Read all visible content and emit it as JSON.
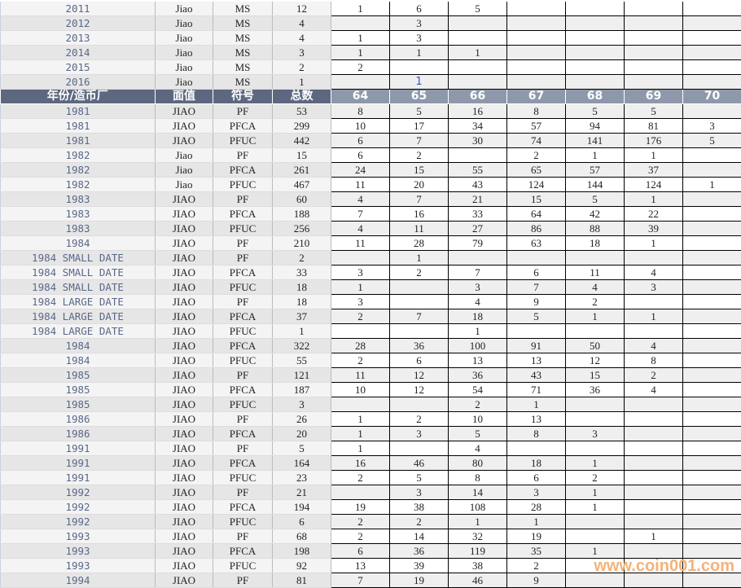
{
  "header": {
    "year": "年份/造币厂",
    "denomination": "面值",
    "symbol": "符号",
    "total": "总数",
    "grades": [
      "64",
      "65",
      "66",
      "67",
      "68",
      "69",
      "70"
    ]
  },
  "rows_top": [
    [
      "2011",
      "Jiao",
      "MS",
      "12",
      "1",
      "6",
      "5",
      "",
      "",
      "",
      ""
    ],
    [
      "2012",
      "Jiao",
      "MS",
      "4",
      "",
      "3",
      "",
      "",
      "",
      "",
      ""
    ],
    [
      "2013",
      "Jiao",
      "MS",
      "4",
      "1",
      "3",
      "",
      "",
      "",
      "",
      ""
    ],
    [
      "2014",
      "Jiao",
      "MS",
      "3",
      "1",
      "1",
      "1",
      "",
      "",
      "",
      ""
    ],
    [
      "2015",
      "Jiao",
      "MS",
      "2",
      "2",
      "",
      "",
      "",
      "",
      "",
      ""
    ],
    [
      "2016",
      "Jiao",
      "MS",
      "1",
      "",
      "1",
      "",
      "",
      "",
      "",
      ""
    ]
  ],
  "rows": [
    [
      "1981",
      "JIAO",
      "PF",
      "53",
      "8",
      "5",
      "16",
      "8",
      "5",
      "5",
      ""
    ],
    [
      "1981",
      "JIAO",
      "PFCA",
      "299",
      "10",
      "17",
      "34",
      "57",
      "94",
      "81",
      "3"
    ],
    [
      "1981",
      "JIAO",
      "PFUC",
      "442",
      "6",
      "7",
      "30",
      "74",
      "141",
      "176",
      "5"
    ],
    [
      "1982",
      "Jiao",
      "PF",
      "15",
      "6",
      "2",
      "",
      "2",
      "1",
      "1",
      ""
    ],
    [
      "1982",
      "Jiao",
      "PFCA",
      "261",
      "24",
      "15",
      "55",
      "65",
      "57",
      "37",
      ""
    ],
    [
      "1982",
      "Jiao",
      "PFUC",
      "467",
      "11",
      "20",
      "43",
      "124",
      "144",
      "124",
      "1"
    ],
    [
      "1983",
      "JIAO",
      "PF",
      "60",
      "4",
      "7",
      "21",
      "15",
      "5",
      "1",
      ""
    ],
    [
      "1983",
      "JIAO",
      "PFCA",
      "188",
      "7",
      "16",
      "33",
      "64",
      "42",
      "22",
      ""
    ],
    [
      "1983",
      "JIAO",
      "PFUC",
      "256",
      "4",
      "11",
      "27",
      "86",
      "88",
      "39",
      ""
    ],
    [
      "1984",
      "JIAO",
      "PF",
      "210",
      "11",
      "28",
      "79",
      "63",
      "18",
      "1",
      ""
    ],
    [
      "1984 SMALL DATE",
      "JIAO",
      "PF",
      "2",
      "",
      "1",
      "",
      "",
      "",
      "",
      ""
    ],
    [
      "1984 SMALL DATE",
      "JIAO",
      "PFCA",
      "33",
      "3",
      "2",
      "7",
      "6",
      "11",
      "4",
      ""
    ],
    [
      "1984 SMALL DATE",
      "JIAO",
      "PFUC",
      "18",
      "1",
      "",
      "3",
      "7",
      "4",
      "3",
      ""
    ],
    [
      "1984 LARGE DATE",
      "JIAO",
      "PF",
      "18",
      "3",
      "",
      "4",
      "9",
      "2",
      "",
      ""
    ],
    [
      "1984 LARGE DATE",
      "JIAO",
      "PFCA",
      "37",
      "2",
      "7",
      "18",
      "5",
      "1",
      "1",
      ""
    ],
    [
      "1984 LARGE DATE",
      "JIAO",
      "PFUC",
      "1",
      "",
      "",
      "1",
      "",
      "",
      "",
      ""
    ],
    [
      "1984",
      "JIAO",
      "PFCA",
      "322",
      "28",
      "36",
      "100",
      "91",
      "50",
      "4",
      ""
    ],
    [
      "1984",
      "JIAO",
      "PFUC",
      "55",
      "2",
      "6",
      "13",
      "13",
      "12",
      "8",
      ""
    ],
    [
      "1985",
      "JIAO",
      "PF",
      "121",
      "11",
      "12",
      "36",
      "43",
      "15",
      "2",
      ""
    ],
    [
      "1985",
      "JIAO",
      "PFCA",
      "187",
      "10",
      "12",
      "54",
      "71",
      "36",
      "4",
      ""
    ],
    [
      "1985",
      "JIAO",
      "PFUC",
      "3",
      "",
      "",
      "2",
      "1",
      "",
      "",
      ""
    ],
    [
      "1986",
      "JIAO",
      "PF",
      "26",
      "1",
      "2",
      "10",
      "13",
      "",
      "",
      ""
    ],
    [
      "1986",
      "JIAO",
      "PFCA",
      "20",
      "1",
      "3",
      "5",
      "8",
      "3",
      "",
      ""
    ],
    [
      "1991",
      "JIAO",
      "PF",
      "5",
      "1",
      "",
      "4",
      "",
      "",
      "",
      ""
    ],
    [
      "1991",
      "JIAO",
      "PFCA",
      "164",
      "16",
      "46",
      "80",
      "18",
      "1",
      "",
      ""
    ],
    [
      "1991",
      "JIAO",
      "PFUC",
      "23",
      "2",
      "5",
      "8",
      "6",
      "2",
      "",
      ""
    ],
    [
      "1992",
      "JIAO",
      "PF",
      "21",
      "",
      "3",
      "14",
      "3",
      "1",
      "",
      ""
    ],
    [
      "1992",
      "JIAO",
      "PFCA",
      "194",
      "19",
      "38",
      "108",
      "28",
      "1",
      "",
      ""
    ],
    [
      "1992",
      "JIAO",
      "PFUC",
      "6",
      "2",
      "2",
      "1",
      "1",
      "",
      "",
      ""
    ],
    [
      "1993",
      "JIAO",
      "PF",
      "68",
      "2",
      "14",
      "32",
      "19",
      "",
      "1",
      ""
    ],
    [
      "1993",
      "JIAO",
      "PFCA",
      "198",
      "6",
      "36",
      "119",
      "35",
      "1",
      "",
      ""
    ],
    [
      "1993",
      "JIAO",
      "PFUC",
      "92",
      "13",
      "39",
      "38",
      "2",
      "",
      "",
      ""
    ],
    [
      "1994",
      "JIAO",
      "PF",
      "81",
      "7",
      "19",
      "46",
      "9",
      "",
      "",
      ""
    ]
  ],
  "watermark": "www.coin001.com",
  "colors": {
    "header_dark": "#5d6880",
    "header_light": "#8e98ab",
    "year_text": "#5a6888",
    "watermark": "#f5b27a"
  }
}
